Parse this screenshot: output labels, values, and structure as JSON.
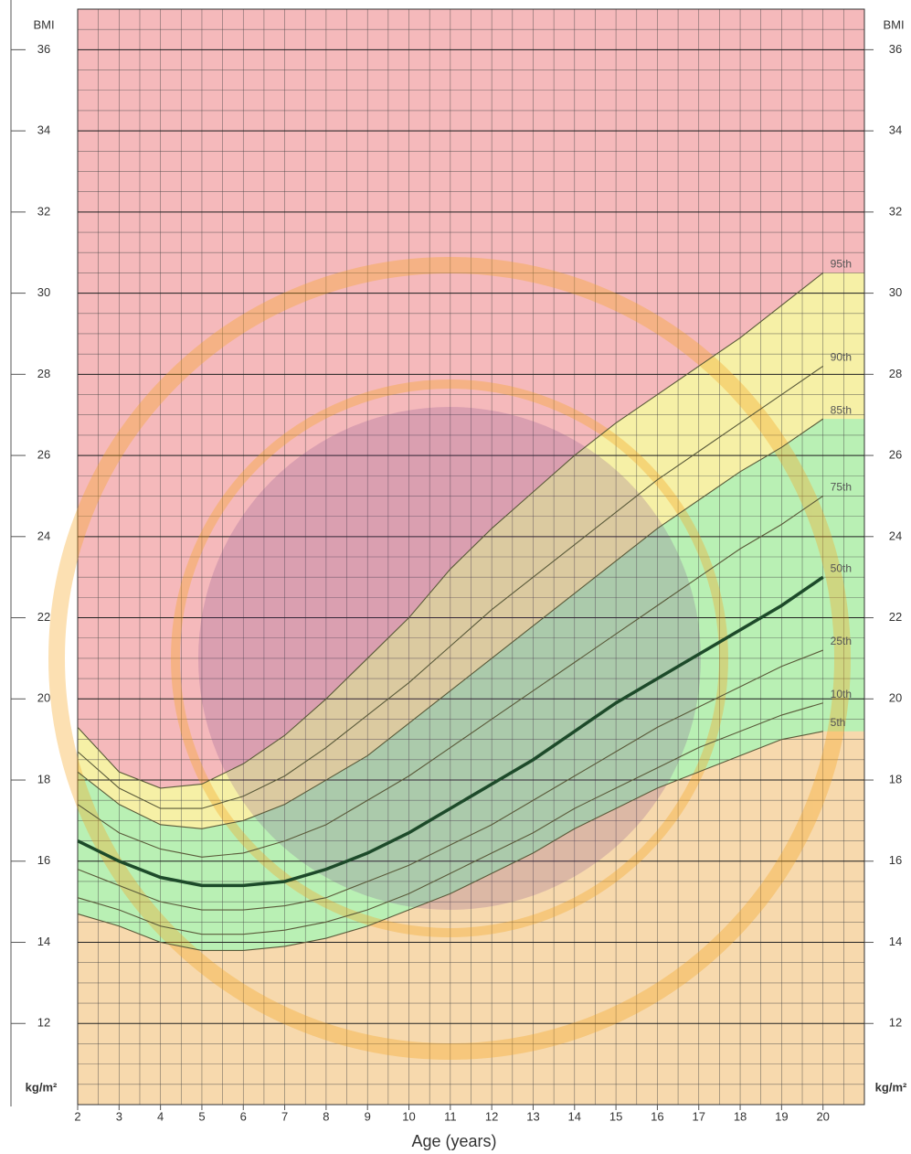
{
  "chart_data": {
    "type": "line",
    "y_unit_top": "BMI",
    "y_unit_bottom": "kg/m²",
    "x_label": "Age (years)",
    "x": [
      2,
      3,
      4,
      5,
      6,
      7,
      8,
      9,
      10,
      11,
      12,
      13,
      14,
      15,
      16,
      17,
      18,
      19,
      20
    ],
    "series": [
      {
        "name": "95th",
        "color": "#5a5a3a",
        "values": [
          19.3,
          18.2,
          17.8,
          17.9,
          18.4,
          19.1,
          20.0,
          21.0,
          22.0,
          23.2,
          24.2,
          25.1,
          26.0,
          26.8,
          27.5,
          28.2,
          28.9,
          29.7,
          30.5
        ]
      },
      {
        "name": "90th",
        "color": "#5a5a3a",
        "values": [
          18.7,
          17.8,
          17.3,
          17.3,
          17.6,
          18.1,
          18.8,
          19.6,
          20.4,
          21.3,
          22.2,
          23.0,
          23.8,
          24.6,
          25.4,
          26.1,
          26.8,
          27.5,
          28.2
        ]
      },
      {
        "name": "85th",
        "color": "#5a5a3a",
        "values": [
          18.2,
          17.4,
          16.9,
          16.8,
          17.0,
          17.4,
          18.0,
          18.6,
          19.4,
          20.2,
          21.0,
          21.8,
          22.6,
          23.4,
          24.2,
          24.9,
          25.6,
          26.2,
          26.9
        ]
      },
      {
        "name": "75th",
        "color": "#5a5a3a",
        "values": [
          17.4,
          16.7,
          16.3,
          16.1,
          16.2,
          16.5,
          16.9,
          17.5,
          18.1,
          18.8,
          19.5,
          20.2,
          20.9,
          21.6,
          22.3,
          23.0,
          23.7,
          24.3,
          25.0
        ]
      },
      {
        "name": "50th",
        "color": "#1d4a2a",
        "values": [
          16.5,
          16.0,
          15.6,
          15.4,
          15.4,
          15.5,
          15.8,
          16.2,
          16.7,
          17.3,
          17.9,
          18.5,
          19.2,
          19.9,
          20.5,
          21.1,
          21.7,
          22.3,
          23.0
        ]
      },
      {
        "name": "25th",
        "color": "#5a5a3a",
        "values": [
          15.8,
          15.4,
          15.0,
          14.8,
          14.8,
          14.9,
          15.1,
          15.5,
          15.9,
          16.4,
          16.9,
          17.5,
          18.1,
          18.7,
          19.3,
          19.8,
          20.3,
          20.8,
          21.2
        ]
      },
      {
        "name": "10th",
        "color": "#5a5a3a",
        "values": [
          15.1,
          14.8,
          14.4,
          14.2,
          14.2,
          14.3,
          14.5,
          14.8,
          15.2,
          15.7,
          16.2,
          16.7,
          17.3,
          17.8,
          18.3,
          18.8,
          19.2,
          19.6,
          19.9
        ]
      },
      {
        "name": "5th",
        "color": "#5a5a3a",
        "values": [
          14.7,
          14.4,
          14.0,
          13.8,
          13.8,
          13.9,
          14.1,
          14.4,
          14.8,
          15.2,
          15.7,
          16.2,
          16.8,
          17.3,
          17.8,
          18.2,
          18.6,
          19.0,
          19.2
        ]
      }
    ],
    "zone_colors": [
      "#f5b9bb",
      "#f6f0a6",
      "#b9f0b4",
      "#f7d9ad"
    ],
    "xlim": [
      2,
      21
    ],
    "ylim": [
      10,
      37
    ],
    "xticks": [
      2,
      3,
      4,
      5,
      6,
      7,
      8,
      9,
      10,
      11,
      12,
      13,
      14,
      15,
      16,
      17,
      18,
      19,
      20
    ],
    "yticks": [
      12,
      14,
      16,
      18,
      20,
      22,
      24,
      26,
      28,
      30,
      32,
      34,
      36
    ],
    "grid": true,
    "minor_grid_step": {
      "x": 0.5,
      "y": 0.5
    }
  }
}
